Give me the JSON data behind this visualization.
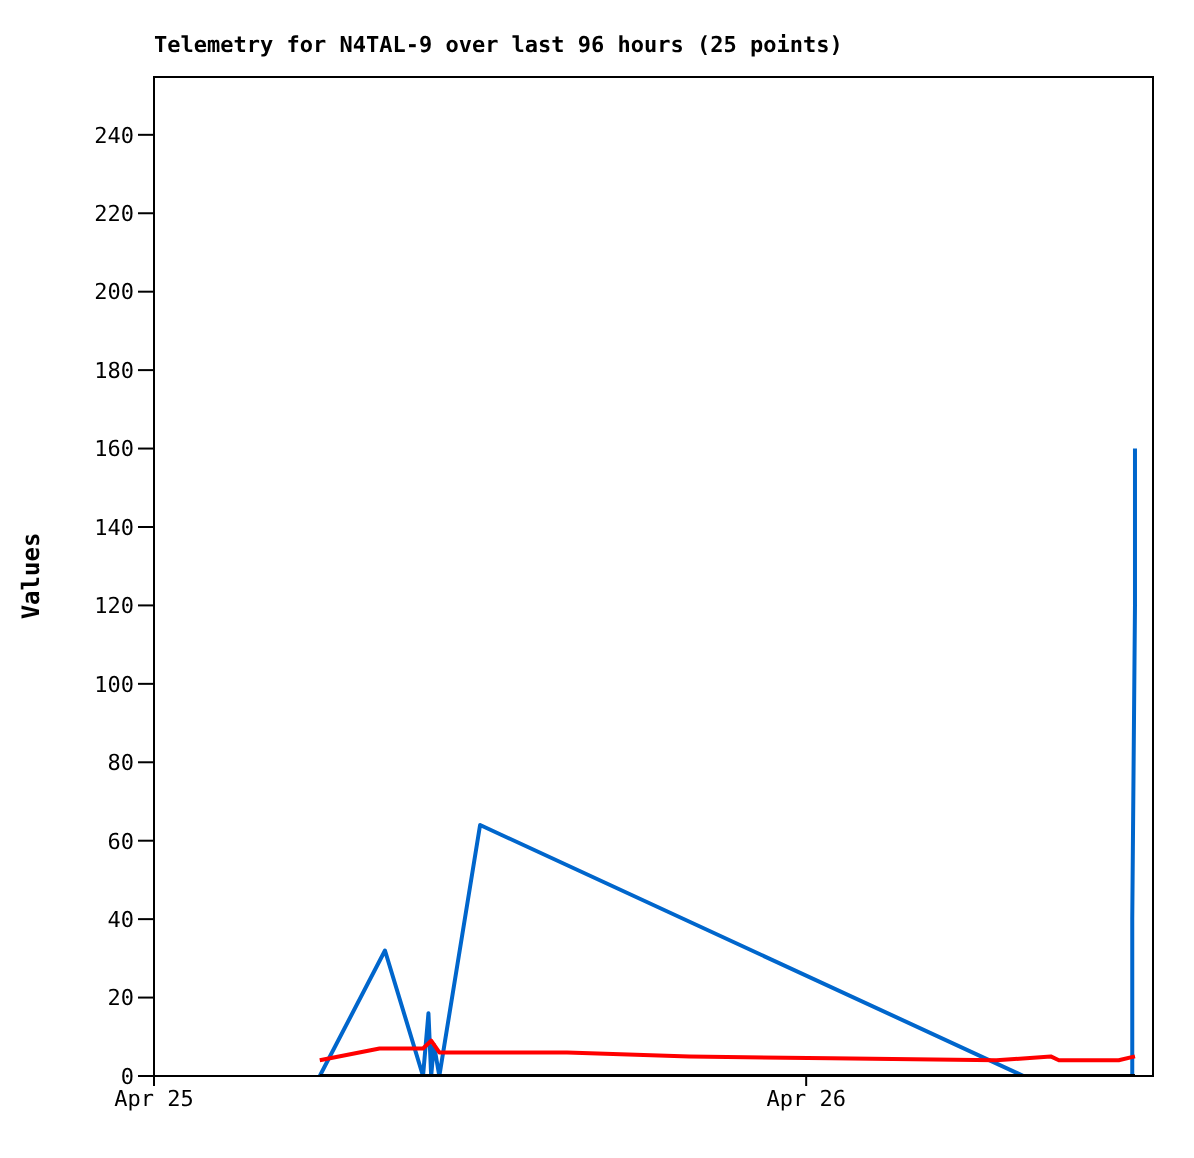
{
  "chart_data": {
    "type": "line",
    "title": "Telemetry for N4TAL-9 over last 96 hours (25 points)",
    "ylabel": "Values",
    "xlim": [
      "--04-25T00:00",
      "--04-26T12:48"
    ],
    "xticks": [
      {
        "value": "--04-25",
        "label": "Apr 25"
      },
      {
        "value": "--04-26",
        "label": "Apr 26"
      }
    ],
    "ylim": [
      0,
      255
    ],
    "yticks": [
      0,
      20,
      40,
      60,
      80,
      100,
      120,
      140,
      160,
      180,
      200,
      220,
      240
    ],
    "marker": "none",
    "line_style": "solid",
    "series": [
      {
        "color": "#0066cc",
        "x": [
          "--04-25T06:06",
          "--04-25T08:30",
          "--04-25T09:54",
          "--04-25T10:06",
          "--04-25T10:12",
          "--04-25T10:18",
          "--04-25T10:30",
          "--04-25T12:00",
          "--04-26T08:00",
          "--04-26T12:00",
          "--04-26T12:00",
          "--04-26T12:06",
          "--04-26T12:06"
        ],
        "values": [
          0,
          32,
          0,
          16,
          0,
          8,
          0,
          64,
          0,
          0,
          40,
          120,
          160
        ]
      },
      {
        "color": "#ff0000",
        "x": [
          "--04-25T06:06",
          "--04-25T08:18",
          "--04-25T09:54",
          "--04-25T10:12",
          "--04-25T10:30",
          "--04-25T15:12",
          "--04-25T19:42",
          "--04-26T00:54",
          "--04-26T07:00",
          "--04-26T09:00",
          "--04-26T09:18",
          "--04-26T11:30",
          "--04-26T12:06"
        ],
        "values": [
          4,
          7,
          7,
          9,
          6,
          6,
          5,
          4.5,
          4,
          5,
          4,
          4,
          5
        ]
      },
      {
        "color": "#000000",
        "x": [
          "--04-25T06:06",
          "--04-26T12:06"
        ],
        "values": [
          0,
          0
        ]
      }
    ]
  }
}
